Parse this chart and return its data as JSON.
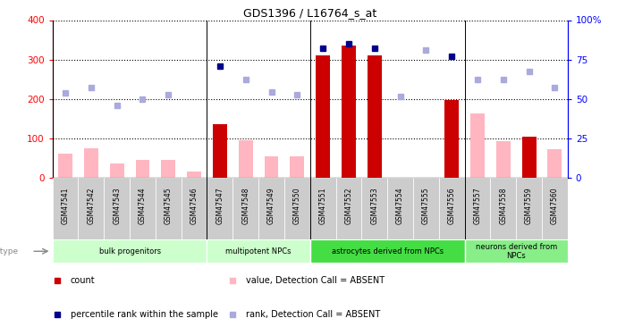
{
  "title": "GDS1396 / L16764_s_at",
  "samples": [
    "GSM47541",
    "GSM47542",
    "GSM47543",
    "GSM47544",
    "GSM47545",
    "GSM47546",
    "GSM47547",
    "GSM47548",
    "GSM47549",
    "GSM47550",
    "GSM47551",
    "GSM47552",
    "GSM47553",
    "GSM47554",
    "GSM47555",
    "GSM47556",
    "GSM47557",
    "GSM47558",
    "GSM47559",
    "GSM47560"
  ],
  "count_values": [
    null,
    null,
    null,
    null,
    null,
    null,
    135,
    null,
    null,
    null,
    310,
    335,
    310,
    null,
    null,
    198,
    null,
    null,
    103,
    null
  ],
  "value_absent": [
    60,
    75,
    35,
    45,
    45,
    15,
    null,
    95,
    55,
    55,
    null,
    null,
    null,
    null,
    null,
    null,
    163,
    93,
    null,
    73
  ],
  "rank_present": [
    null,
    null,
    null,
    null,
    null,
    null,
    283,
    null,
    null,
    null,
    328,
    340,
    328,
    null,
    null,
    307,
    null,
    null,
    null,
    null
  ],
  "rank_absent": [
    215,
    228,
    183,
    200,
    210,
    null,
    null,
    248,
    218,
    210,
    null,
    null,
    null,
    205,
    323,
    null,
    250,
    248,
    270,
    228
  ],
  "bar_color_present": "#CC0000",
  "bar_color_absent": "#FFB6C1",
  "dot_color_present": "#00008B",
  "dot_color_absent": "#AAAADD",
  "ylim_left": [
    0,
    400
  ],
  "ylim_right": [
    0,
    100
  ],
  "yticks_left": [
    0,
    100,
    200,
    300,
    400
  ],
  "yticks_right": [
    0,
    25,
    50,
    75,
    100
  ],
  "group_separators": [
    5.5,
    9.5,
    15.5
  ],
  "groups": [
    {
      "label": "bulk progenitors",
      "start": 0,
      "end": 5,
      "color": "#CCFFCC"
    },
    {
      "label": "multipotent NPCs",
      "start": 6,
      "end": 9,
      "color": "#CCFFCC"
    },
    {
      "label": "astrocytes derived from NPCs",
      "start": 10,
      "end": 15,
      "color": "#44DD44"
    },
    {
      "label": "neurons derived from\nNPCs",
      "start": 16,
      "end": 19,
      "color": "#88EE88"
    }
  ]
}
